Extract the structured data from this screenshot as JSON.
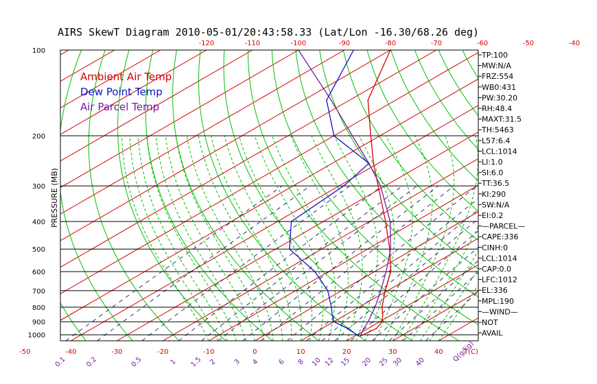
{
  "colors": {
    "ambient": "#d40000",
    "dewpoint": "#1010c8",
    "parcel": "#7a1aa0",
    "isotherm": "#d40000",
    "dry_adiabat": "#00c000",
    "moist_adiabat": "#00c000",
    "mixing_ratio": "#303070",
    "isobar": "#000000"
  },
  "chart_data": {
    "type": "line",
    "title": "AIRS SkewT Diagram 2010-05-01/20:43:58.33 (Lat/Lon -16.30/68.26 deg)",
    "ylabel": "PRESSURE (MB)",
    "xlabel": "T(C)",
    "mixing_ratio_unit": "Q(g/kg)",
    "y_scale": "log",
    "ylim": [
      1050,
      100
    ],
    "pressure_ticks": [
      100,
      200,
      300,
      400,
      500,
      600,
      700,
      800,
      900,
      1000
    ],
    "bottom_temp_ticks": [
      -50,
      -40,
      -30,
      -20,
      -10,
      0,
      10,
      20,
      30,
      40
    ],
    "top_temp_ticks": [
      -120,
      -110,
      -100,
      -90,
      -80,
      -70,
      -60,
      -50,
      -40
    ],
    "mixing_ratio_ticks": [
      "0.1",
      "0.2",
      "0.5",
      "1",
      "1.5",
      "2",
      "3",
      "4",
      "6",
      "8",
      "10",
      "12",
      "15",
      "20",
      "25",
      "30",
      "40"
    ],
    "legend": [
      "Ambient Air Temp",
      "Dew Point Temp",
      "Air Parcel Temp"
    ],
    "series": [
      {
        "name": "Ambient Air Temp",
        "points": [
          {
            "p": 1010,
            "t": 21.2
          },
          {
            "p": 950,
            "t": 21.8
          },
          {
            "p": 900,
            "t": 20.5
          },
          {
            "p": 850,
            "t": 18.0
          },
          {
            "p": 800,
            "t": 15.0
          },
          {
            "p": 700,
            "t": 9.5
          },
          {
            "p": 600,
            "t": 3.5
          },
          {
            "p": 500,
            "t": -5.2
          },
          {
            "p": 400,
            "t": -16.5
          },
          {
            "p": 300,
            "t": -31.5
          },
          {
            "p": 250,
            "t": -41.0
          },
          {
            "p": 200,
            "t": -52.0
          },
          {
            "p": 150,
            "t": -66.0
          },
          {
            "p": 100,
            "t": -80.0
          }
        ]
      },
      {
        "name": "Dew Point Temp",
        "points": [
          {
            "p": 1010,
            "t": 20.8
          },
          {
            "p": 950,
            "t": 15.5
          },
          {
            "p": 900,
            "t": 10.0
          },
          {
            "p": 850,
            "t": 7.0
          },
          {
            "p": 800,
            "t": 4.0
          },
          {
            "p": 700,
            "t": -3.0
          },
          {
            "p": 600,
            "t": -13.0
          },
          {
            "p": 500,
            "t": -27.0
          },
          {
            "p": 400,
            "t": -37.0
          },
          {
            "p": 300,
            "t": -39.0
          },
          {
            "p": 250,
            "t": -42.0
          },
          {
            "p": 200,
            "t": -60.0
          },
          {
            "p": 150,
            "t": -75.0
          },
          {
            "p": 100,
            "t": -88.0
          }
        ]
      },
      {
        "name": "Air Parcel Temp",
        "points": [
          {
            "p": 1010,
            "t": 21.2
          },
          {
            "p": 950,
            "t": 19.0
          },
          {
            "p": 900,
            "t": 17.5
          },
          {
            "p": 850,
            "t": 15.5
          },
          {
            "p": 800,
            "t": 13.5
          },
          {
            "p": 700,
            "t": 8.5
          },
          {
            "p": 600,
            "t": 2.5
          },
          {
            "p": 500,
            "t": -5.0
          },
          {
            "p": 400,
            "t": -15.5
          },
          {
            "p": 300,
            "t": -31.0
          },
          {
            "p": 250,
            "t": -42.0
          },
          {
            "p": 200,
            "t": -56.0
          },
          {
            "p": 150,
            "t": -74.0
          },
          {
            "p": 100,
            "t": -100.0
          }
        ]
      }
    ],
    "indices": [
      "TP:100",
      "MW:N/A",
      "FRZ:554",
      "WB0:431",
      "PW:30.20",
      "RH:48.4",
      "MAXT:31.5",
      "TH:5463",
      "L57:6.4",
      "LCL:1014",
      "LI:1.0",
      "SI:6.0",
      "TT:36.5",
      "KI:290",
      "SW:N/A",
      "EI:0.2",
      "—PARCEL—",
      "CAPE:336",
      "CINH:0",
      "LCL:1014",
      "CAP:0.0",
      "LFC:1012",
      "EL:336",
      "MPL:190",
      "—WIND—",
      "NOT",
      "AVAIL"
    ]
  }
}
